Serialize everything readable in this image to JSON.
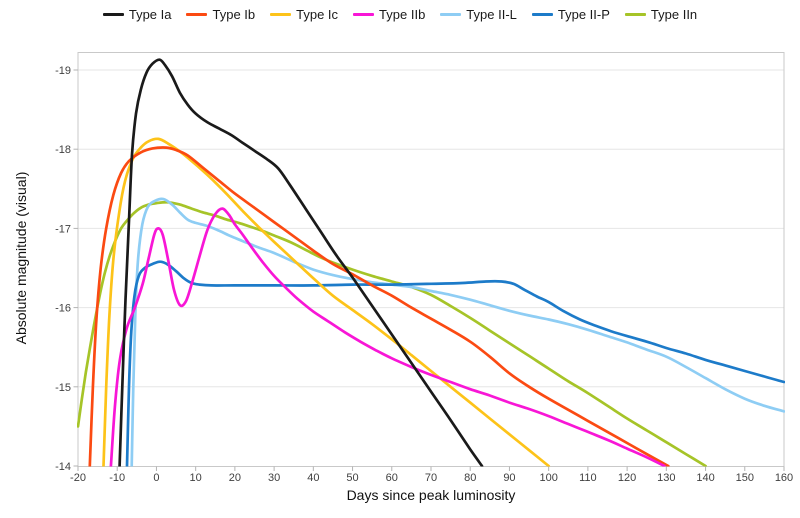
{
  "chart_data": {
    "type": "line",
    "title": "",
    "xlabel": "Days since peak luminosity",
    "ylabel": "Absolute magnitude (visual)",
    "xlim": [
      -20,
      160
    ],
    "ylim": [
      -14,
      -19.23
    ],
    "y_axis_inverted": true,
    "grid": "horizontal",
    "legend_position": "top-center",
    "x_ticks": [
      -20,
      -10,
      0,
      10,
      20,
      30,
      40,
      50,
      60,
      70,
      80,
      90,
      100,
      110,
      120,
      130,
      140,
      150,
      160
    ],
    "y_ticks": [
      -19,
      -18,
      -17,
      -16,
      -15,
      -14
    ],
    "grid_color": "#e6e6e6",
    "border_color": "#c9c9c9",
    "tick_color": "#b3b3b3",
    "series": [
      {
        "name": "Type Ia",
        "color": "#1a1a1a",
        "points": [
          [
            -9.4,
            -14
          ],
          [
            -8.7,
            -15
          ],
          [
            -7.9,
            -16.1
          ],
          [
            -7,
            -17.1
          ],
          [
            -6.2,
            -17.95
          ],
          [
            -5.2,
            -18.45
          ],
          [
            -4,
            -18.75
          ],
          [
            -2.5,
            -18.97
          ],
          [
            -1,
            -19.08
          ],
          [
            0.8,
            -19.13
          ],
          [
            2.2,
            -19.06
          ],
          [
            4,
            -18.92
          ],
          [
            6,
            -18.71
          ],
          [
            8,
            -18.56
          ],
          [
            10,
            -18.45
          ],
          [
            13,
            -18.34
          ],
          [
            16,
            -18.26
          ],
          [
            19,
            -18.18
          ],
          [
            22,
            -18.08
          ],
          [
            25,
            -17.98
          ],
          [
            28,
            -17.88
          ],
          [
            31,
            -17.76
          ],
          [
            34,
            -17.55
          ],
          [
            38,
            -17.25
          ],
          [
            42,
            -16.95
          ],
          [
            46,
            -16.65
          ],
          [
            50,
            -16.38
          ],
          [
            55,
            -16.02
          ],
          [
            60,
            -15.66
          ],
          [
            65,
            -15.3
          ],
          [
            70,
            -14.94
          ],
          [
            75,
            -14.58
          ],
          [
            80,
            -14.21
          ],
          [
            83,
            -14
          ]
        ]
      },
      {
        "name": "Type Ib",
        "color": "#fb4a12",
        "points": [
          [
            -17,
            -14
          ],
          [
            -16.2,
            -15
          ],
          [
            -15.3,
            -15.85
          ],
          [
            -14.2,
            -16.5
          ],
          [
            -12.8,
            -17
          ],
          [
            -11,
            -17.42
          ],
          [
            -9,
            -17.7
          ],
          [
            -7,
            -17.85
          ],
          [
            -4,
            -17.96
          ],
          [
            -1,
            -18.01
          ],
          [
            2.5,
            -18.02
          ],
          [
            5,
            -17.99
          ],
          [
            8,
            -17.92
          ],
          [
            12,
            -17.76
          ],
          [
            16,
            -17.6
          ],
          [
            20,
            -17.44
          ],
          [
            25,
            -17.26
          ],
          [
            30,
            -17.08
          ],
          [
            35,
            -16.9
          ],
          [
            40,
            -16.72
          ],
          [
            45,
            -16.55
          ],
          [
            50,
            -16.42
          ],
          [
            55,
            -16.28
          ],
          [
            60,
            -16.15
          ],
          [
            65,
            -16.0
          ],
          [
            70,
            -15.86
          ],
          [
            75,
            -15.72
          ],
          [
            80,
            -15.57
          ],
          [
            85,
            -15.38
          ],
          [
            90,
            -15.17
          ],
          [
            95,
            -15.0
          ],
          [
            100,
            -14.85
          ],
          [
            105,
            -14.71
          ],
          [
            110,
            -14.57
          ],
          [
            115,
            -14.43
          ],
          [
            120,
            -14.29
          ],
          [
            125,
            -14.15
          ],
          [
            130.5,
            -14
          ]
        ]
      },
      {
        "name": "Type Ic",
        "color": "#fdc319",
        "points": [
          [
            -13.5,
            -14
          ],
          [
            -12.8,
            -15
          ],
          [
            -12,
            -15.9
          ],
          [
            -11,
            -16.6
          ],
          [
            -9.5,
            -17.2
          ],
          [
            -8,
            -17.6
          ],
          [
            -6,
            -17.88
          ],
          [
            -4,
            -18.02
          ],
          [
            -2,
            -18.1
          ],
          [
            0.5,
            -18.13
          ],
          [
            3,
            -18.07
          ],
          [
            6,
            -17.97
          ],
          [
            9,
            -17.85
          ],
          [
            12,
            -17.72
          ],
          [
            15,
            -17.58
          ],
          [
            18,
            -17.43
          ],
          [
            22,
            -17.22
          ],
          [
            26,
            -17.02
          ],
          [
            30,
            -16.83
          ],
          [
            35,
            -16.6
          ],
          [
            40,
            -16.37
          ],
          [
            45,
            -16.15
          ],
          [
            50,
            -15.97
          ],
          [
            55,
            -15.79
          ],
          [
            60,
            -15.6
          ],
          [
            65,
            -15.4
          ],
          [
            70,
            -15.2
          ],
          [
            75,
            -15.0
          ],
          [
            80,
            -14.8
          ],
          [
            85,
            -14.6
          ],
          [
            90,
            -14.4
          ],
          [
            95,
            -14.2
          ],
          [
            100,
            -14
          ]
        ]
      },
      {
        "name": "Type IIb",
        "color": "#f816d6",
        "points": [
          [
            -11.6,
            -14
          ],
          [
            -10.6,
            -14.75
          ],
          [
            -9.3,
            -15.35
          ],
          [
            -7.5,
            -15.75
          ],
          [
            -5.5,
            -16.0
          ],
          [
            -3.5,
            -16.3
          ],
          [
            -2,
            -16.62
          ],
          [
            -0.5,
            -16.93
          ],
          [
            0.5,
            -17.0
          ],
          [
            1.6,
            -16.92
          ],
          [
            3,
            -16.6
          ],
          [
            4.5,
            -16.22
          ],
          [
            6,
            -16.03
          ],
          [
            7.5,
            -16.08
          ],
          [
            9,
            -16.3
          ],
          [
            11,
            -16.65
          ],
          [
            13,
            -16.98
          ],
          [
            15,
            -17.18
          ],
          [
            16.8,
            -17.25
          ],
          [
            18.5,
            -17.17
          ],
          [
            20,
            -17.05
          ],
          [
            22,
            -16.92
          ],
          [
            24,
            -16.78
          ],
          [
            27,
            -16.58
          ],
          [
            30,
            -16.4
          ],
          [
            33,
            -16.25
          ],
          [
            36,
            -16.11
          ],
          [
            40,
            -15.95
          ],
          [
            44,
            -15.82
          ],
          [
            48,
            -15.69
          ],
          [
            52,
            -15.57
          ],
          [
            56,
            -15.46
          ],
          [
            60,
            -15.36
          ],
          [
            65,
            -15.25
          ],
          [
            70,
            -15.15
          ],
          [
            75,
            -15.06
          ],
          [
            80,
            -14.97
          ],
          [
            85,
            -14.89
          ],
          [
            90,
            -14.8
          ],
          [
            95,
            -14.72
          ],
          [
            100,
            -14.63
          ],
          [
            105,
            -14.53
          ],
          [
            110,
            -14.43
          ],
          [
            115,
            -14.33
          ],
          [
            120,
            -14.22
          ],
          [
            125,
            -14.11
          ],
          [
            129.5,
            -14
          ]
        ]
      },
      {
        "name": "Type II-L",
        "color": "#8ecdf4",
        "points": [
          [
            -6.3,
            -14
          ],
          [
            -5.9,
            -15
          ],
          [
            -5.4,
            -15.9
          ],
          [
            -4.7,
            -16.6
          ],
          [
            -3.6,
            -17.05
          ],
          [
            -2.2,
            -17.27
          ],
          [
            -0.3,
            -17.35
          ],
          [
            1.8,
            -17.37
          ],
          [
            4,
            -17.3
          ],
          [
            6,
            -17.2
          ],
          [
            8,
            -17.11
          ],
          [
            10,
            -17.07
          ],
          [
            13,
            -17.03
          ],
          [
            16,
            -16.97
          ],
          [
            19,
            -16.9
          ],
          [
            22,
            -16.84
          ],
          [
            26,
            -16.76
          ],
          [
            30,
            -16.69
          ],
          [
            35,
            -16.58
          ],
          [
            40,
            -16.48
          ],
          [
            45,
            -16.41
          ],
          [
            50,
            -16.36
          ],
          [
            55,
            -16.32
          ],
          [
            60,
            -16.29
          ],
          [
            65,
            -16.26
          ],
          [
            70,
            -16.21
          ],
          [
            75,
            -16.16
          ],
          [
            80,
            -16.1
          ],
          [
            85,
            -16.03
          ],
          [
            90,
            -15.96
          ],
          [
            95,
            -15.9
          ],
          [
            100,
            -15.85
          ],
          [
            105,
            -15.79
          ],
          [
            110,
            -15.72
          ],
          [
            115,
            -15.64
          ],
          [
            120,
            -15.56
          ],
          [
            125,
            -15.47
          ],
          [
            130,
            -15.38
          ],
          [
            135,
            -15.25
          ],
          [
            140,
            -15.11
          ],
          [
            145,
            -14.97
          ],
          [
            150,
            -14.85
          ],
          [
            155,
            -14.76
          ],
          [
            160,
            -14.69
          ]
        ]
      },
      {
        "name": "Type II-P",
        "color": "#1d7bc9",
        "points": [
          [
            -7.5,
            -14
          ],
          [
            -7,
            -15
          ],
          [
            -6.4,
            -15.7
          ],
          [
            -5.6,
            -16.15
          ],
          [
            -4.5,
            -16.4
          ],
          [
            -3,
            -16.5
          ],
          [
            -1,
            -16.55
          ],
          [
            1,
            -16.58
          ],
          [
            3,
            -16.54
          ],
          [
            5,
            -16.46
          ],
          [
            7,
            -16.37
          ],
          [
            9,
            -16.31
          ],
          [
            11,
            -16.29
          ],
          [
            14,
            -16.28
          ],
          [
            20,
            -16.28
          ],
          [
            30,
            -16.28
          ],
          [
            40,
            -16.28
          ],
          [
            50,
            -16.29
          ],
          [
            60,
            -16.29
          ],
          [
            70,
            -16.3
          ],
          [
            78,
            -16.31
          ],
          [
            84,
            -16.33
          ],
          [
            88,
            -16.33
          ],
          [
            91,
            -16.3
          ],
          [
            94,
            -16.22
          ],
          [
            97,
            -16.14
          ],
          [
            100,
            -16.07
          ],
          [
            104,
            -15.95
          ],
          [
            108,
            -15.85
          ],
          [
            112,
            -15.77
          ],
          [
            116,
            -15.7
          ],
          [
            120,
            -15.64
          ],
          [
            125,
            -15.57
          ],
          [
            130,
            -15.49
          ],
          [
            135,
            -15.42
          ],
          [
            140,
            -15.34
          ],
          [
            145,
            -15.27
          ],
          [
            150,
            -15.2
          ],
          [
            155,
            -15.13
          ],
          [
            160,
            -15.06
          ]
        ]
      },
      {
        "name": "Type IIn",
        "color": "#a6c428",
        "points": [
          [
            -20,
            -14.5
          ],
          [
            -19,
            -14.85
          ],
          [
            -18,
            -15.18
          ],
          [
            -17,
            -15.48
          ],
          [
            -16,
            -15.76
          ],
          [
            -15,
            -16.02
          ],
          [
            -14,
            -16.26
          ],
          [
            -13,
            -16.47
          ],
          [
            -12,
            -16.64
          ],
          [
            -11,
            -16.78
          ],
          [
            -10,
            -16.9
          ],
          [
            -9,
            -17.0
          ],
          [
            -8,
            -17.07
          ],
          [
            -6,
            -17.18
          ],
          [
            -4,
            -17.26
          ],
          [
            -2,
            -17.3
          ],
          [
            0,
            -17.32
          ],
          [
            3,
            -17.33
          ],
          [
            6,
            -17.3
          ],
          [
            9,
            -17.25
          ],
          [
            12,
            -17.2
          ],
          [
            15,
            -17.16
          ],
          [
            18,
            -17.11
          ],
          [
            21,
            -17.07
          ],
          [
            24,
            -17.02
          ],
          [
            27,
            -16.97
          ],
          [
            30,
            -16.91
          ],
          [
            34,
            -16.83
          ],
          [
            38,
            -16.73
          ],
          [
            42,
            -16.63
          ],
          [
            46,
            -16.55
          ],
          [
            50,
            -16.48
          ],
          [
            55,
            -16.4
          ],
          [
            60,
            -16.33
          ],
          [
            65,
            -16.26
          ],
          [
            70,
            -16.16
          ],
          [
            75,
            -16.02
          ],
          [
            80,
            -15.87
          ],
          [
            85,
            -15.71
          ],
          [
            90,
            -15.55
          ],
          [
            95,
            -15.39
          ],
          [
            100,
            -15.23
          ],
          [
            105,
            -15.07
          ],
          [
            110,
            -14.92
          ],
          [
            115,
            -14.76
          ],
          [
            120,
            -14.6
          ],
          [
            125,
            -14.45
          ],
          [
            130,
            -14.3
          ],
          [
            135,
            -14.15
          ],
          [
            140,
            -14
          ]
        ]
      }
    ]
  }
}
